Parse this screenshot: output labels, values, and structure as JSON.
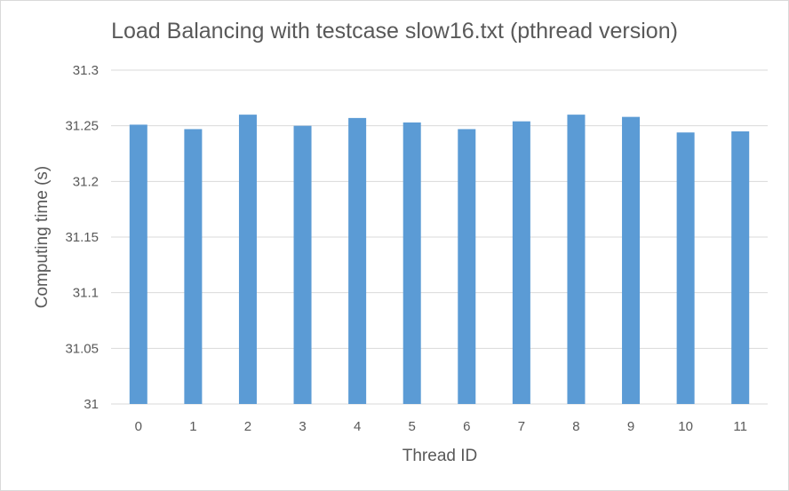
{
  "chart_data": {
    "type": "bar",
    "title": "Load Balancing with testcase slow16.txt (pthread version)",
    "xlabel": "Thread ID",
    "ylabel": "Computing time (s)",
    "categories": [
      "0",
      "1",
      "2",
      "3",
      "4",
      "5",
      "6",
      "7",
      "8",
      "9",
      "10",
      "11"
    ],
    "values": [
      31.251,
      31.247,
      31.26,
      31.25,
      31.257,
      31.253,
      31.247,
      31.254,
      31.26,
      31.258,
      31.244,
      31.245
    ],
    "ylim": [
      31,
      31.3
    ],
    "yticks": [
      "31",
      "31.05",
      "31.1",
      "31.15",
      "31.2",
      "31.25",
      "31.3"
    ],
    "grid": true,
    "legend": "none",
    "bar_color": "#5b9bd5",
    "grid_color": "#d9d9d9"
  }
}
